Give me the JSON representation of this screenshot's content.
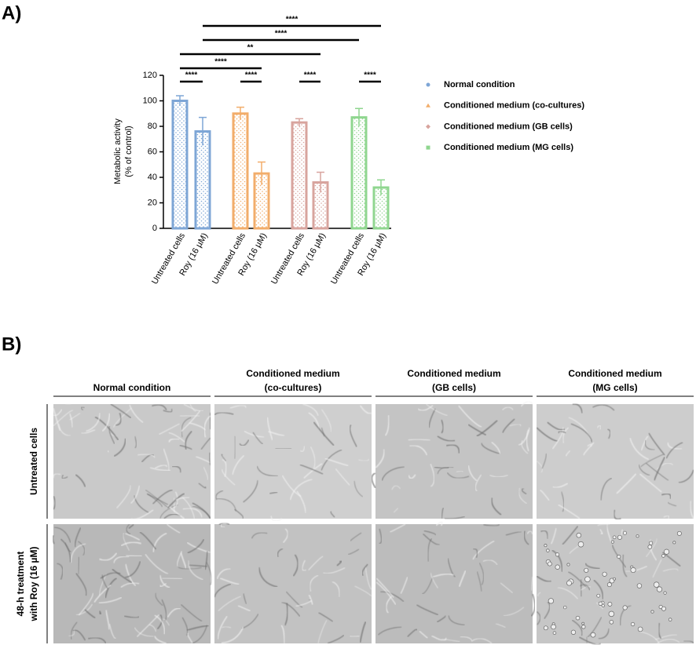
{
  "panel_a_label": "A)",
  "chart_data": {
    "type": "bar",
    "categories": [
      "Untreated cells",
      "Roy (16 µM)",
      "Untreated cells",
      "Roy (16 µM)",
      "Untreated cells",
      "Roy (16 µM)",
      "Untreated cells",
      "Roy (16 µM)"
    ],
    "series": [
      {
        "name": "Normal condition",
        "color": "#7ea6d6",
        "marker": "circle",
        "values": [
          100,
          76,
          null,
          null,
          null,
          null,
          null,
          null
        ],
        "errors": [
          4,
          11,
          null,
          null,
          null,
          null,
          null,
          null
        ]
      },
      {
        "name": "Conditioned medium (co-cultures)",
        "color": "#f2ad6b",
        "marker": "triangle",
        "values": [
          null,
          null,
          90,
          43,
          null,
          null,
          null,
          null
        ],
        "errors": [
          null,
          null,
          5,
          9,
          null,
          null,
          null,
          null
        ]
      },
      {
        "name": "Conditioned medium (GB cells)",
        "color": "#d8a49e",
        "marker": "diamond",
        "values": [
          null,
          null,
          null,
          null,
          83,
          36,
          null,
          null
        ],
        "errors": [
          null,
          null,
          null,
          null,
          3,
          8,
          null,
          null
        ]
      },
      {
        "name": "Conditioned medium (MG cells)",
        "color": "#8fd68f",
        "marker": "square",
        "values": [
          null,
          null,
          null,
          null,
          null,
          null,
          87,
          32
        ],
        "errors": [
          null,
          null,
          null,
          null,
          null,
          null,
          7,
          6
        ]
      }
    ],
    "ylabel": [
      "Metabolic activity",
      "(% of control)"
    ],
    "ylim": [
      0,
      120
    ],
    "yticks": [
      0,
      20,
      40,
      60,
      80,
      100,
      120
    ],
    "annotations": [
      "****",
      "****",
      "**",
      "****",
      "****",
      "****",
      "****",
      "****"
    ]
  },
  "panel_b": {
    "label": "B)",
    "columns": [
      [
        "Normal condition"
      ],
      [
        "Conditioned medium",
        "(co-cultures)"
      ],
      [
        "Conditioned medium",
        "(GB cells)"
      ],
      [
        "Conditioned medium",
        "(MG cells)"
      ]
    ],
    "rows": [
      [
        "Untreated cells"
      ],
      [
        "48-h treatment",
        "with Roy (16 µM)"
      ]
    ]
  }
}
